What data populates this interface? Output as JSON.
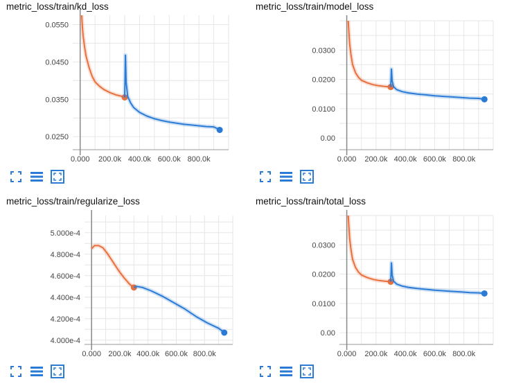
{
  "toolbar": {
    "icons": [
      "fullscreen-icon",
      "list-icon",
      "fit-domain-icon"
    ],
    "accent": "#2b7bd6"
  },
  "chart_data": [
    {
      "type": "line",
      "title": "metric_loss/train/kd_loss",
      "xlim": [
        -50000,
        1000000
      ],
      "ylim": [
        0.0215,
        0.0575
      ],
      "xticks": [
        0,
        200000,
        400000,
        600000,
        800000
      ],
      "xtick_labels": [
        "0.000",
        "200.0k",
        "400.0k",
        "600.0k",
        "800.0k"
      ],
      "yticks": [
        0.025,
        0.035,
        0.045,
        0.055
      ],
      "ytick_labels": [
        "0.0250",
        "0.0350",
        "0.0450",
        "0.0550"
      ],
      "series": [
        {
          "color": "#e8703f",
          "x": [
            10000,
            15000,
            20000,
            30000,
            40000,
            60000,
            80000,
            100000,
            130000,
            160000,
            200000,
            240000,
            280000,
            300000
          ],
          "y": [
            0.0575,
            0.0545,
            0.052,
            0.049,
            0.0465,
            0.0435,
            0.0412,
            0.0397,
            0.0385,
            0.0376,
            0.0368,
            0.0362,
            0.0358,
            0.0355
          ]
        },
        {
          "color": "#2b7bd6",
          "x": [
            300000,
            305000,
            310000,
            320000,
            340000,
            360000,
            400000,
            450000,
            500000,
            550000,
            600000,
            650000,
            700000,
            750000,
            800000,
            850000,
            900000,
            940000
          ],
          "y": [
            0.0355,
            0.0468,
            0.0395,
            0.0358,
            0.034,
            0.0328,
            0.0315,
            0.0305,
            0.0298,
            0.0293,
            0.0289,
            0.0286,
            0.0283,
            0.0281,
            0.0279,
            0.0277,
            0.0276,
            0.0268
          ]
        }
      ]
    },
    {
      "type": "line",
      "title": "metric_loss/train/model_loss",
      "xlim": [
        -50000,
        1000000
      ],
      "ylim": [
        -0.004,
        0.04
      ],
      "xticks": [
        0,
        200000,
        400000,
        600000,
        800000
      ],
      "xtick_labels": [
        "0.000",
        "200.0k",
        "400.0k",
        "600.0k",
        "800.0k"
      ],
      "yticks": [
        0,
        0.01,
        0.02,
        0.03
      ],
      "ytick_labels": [
        "0.00",
        "0.0100",
        "0.0200",
        "0.0300"
      ],
      "series": [
        {
          "color": "#e8703f",
          "x": [
            10000,
            15000,
            20000,
            30000,
            40000,
            60000,
            80000,
            100000,
            140000,
            180000,
            220000,
            260000,
            300000
          ],
          "y": [
            0.04,
            0.036,
            0.032,
            0.028,
            0.025,
            0.0222,
            0.0207,
            0.0197,
            0.0188,
            0.0182,
            0.0178,
            0.0176,
            0.0174
          ]
        },
        {
          "color": "#2b7bd6",
          "x": [
            300000,
            305000,
            310000,
            320000,
            340000,
            380000,
            420000,
            480000,
            540000,
            600000,
            660000,
            720000,
            780000,
            840000,
            900000,
            940000
          ],
          "y": [
            0.0174,
            0.0235,
            0.0195,
            0.0175,
            0.0165,
            0.0158,
            0.0154,
            0.015,
            0.0147,
            0.0144,
            0.0142,
            0.014,
            0.0138,
            0.0136,
            0.0135,
            0.0132
          ]
        }
      ]
    },
    {
      "type": "line",
      "title": "metric_loss/train/regularize_loss",
      "xlim": [
        -50000,
        1000000
      ],
      "ylim": [
        0.000396,
        0.000516
      ],
      "xticks": [
        0,
        200000,
        400000,
        600000,
        800000
      ],
      "xtick_labels": [
        "0.000",
        "200.0k",
        "400.0k",
        "600.0k",
        "800.0k"
      ],
      "yticks": [
        0.0004,
        0.00042,
        0.00044,
        0.00046,
        0.00048,
        0.0005
      ],
      "ytick_labels": [
        "4.000e-4",
        "4.200e-4",
        "4.400e-4",
        "4.600e-4",
        "4.800e-4",
        "5.000e-4"
      ],
      "series": [
        {
          "color": "#e8703f",
          "x": [
            0,
            20000,
            50000,
            80000,
            110000,
            150000,
            190000,
            230000,
            270000,
            300000
          ],
          "y": [
            0.000485,
            0.000488,
            0.000488,
            0.000486,
            0.000481,
            0.000473,
            0.000465,
            0.000458,
            0.000452,
            0.000449
          ]
        },
        {
          "color": "#2b7bd6",
          "x": [
            300000,
            320000,
            360000,
            420000,
            500000,
            580000,
            660000,
            740000,
            820000,
            900000,
            940000
          ],
          "y": [
            0.000449,
            0.00045,
            0.000449,
            0.000446,
            0.000441,
            0.000435,
            0.000429,
            0.000422,
            0.000416,
            0.000411,
            0.000407
          ]
        }
      ]
    },
    {
      "type": "line",
      "title": "metric_loss/train/total_loss",
      "xlim": [
        -50000,
        1000000
      ],
      "ylim": [
        -0.004,
        0.04
      ],
      "xticks": [
        0,
        200000,
        400000,
        600000,
        800000
      ],
      "xtick_labels": [
        "0.000",
        "200.0k",
        "400.0k",
        "600.0k",
        "800.0k"
      ],
      "yticks": [
        0,
        0.01,
        0.02,
        0.03
      ],
      "ytick_labels": [
        "0.00",
        "0.0100",
        "0.0200",
        "0.0300"
      ],
      "series": [
        {
          "color": "#e8703f",
          "x": [
            10000,
            15000,
            20000,
            30000,
            40000,
            60000,
            80000,
            100000,
            140000,
            180000,
            220000,
            260000,
            300000
          ],
          "y": [
            0.04,
            0.036,
            0.032,
            0.028,
            0.025,
            0.0222,
            0.0207,
            0.0197,
            0.0188,
            0.0182,
            0.0178,
            0.0176,
            0.0174
          ]
        },
        {
          "color": "#2b7bd6",
          "x": [
            300000,
            305000,
            310000,
            320000,
            340000,
            380000,
            420000,
            480000,
            540000,
            600000,
            660000,
            720000,
            780000,
            840000,
            900000,
            940000
          ],
          "y": [
            0.0174,
            0.0238,
            0.0197,
            0.0176,
            0.0166,
            0.0159,
            0.0155,
            0.0151,
            0.0148,
            0.0145,
            0.0143,
            0.0141,
            0.0139,
            0.0137,
            0.0136,
            0.0134
          ]
        }
      ]
    }
  ]
}
